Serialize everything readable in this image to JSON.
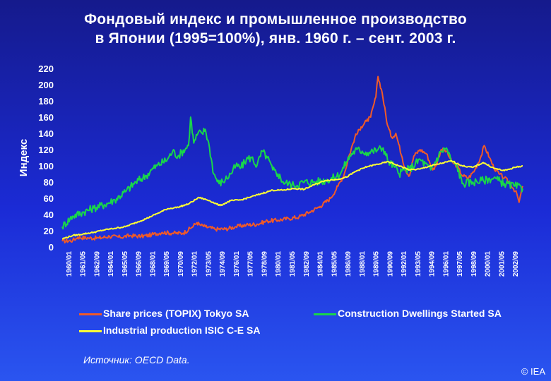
{
  "title_line1": "Фондовый индекс и промышленное производство",
  "title_line2": "в Японии (1995=100%), янв. 1960 г. – сент. 2003 г.",
  "source_text": "Источник: OECD Data.",
  "copyright": "© IEA",
  "colors": {
    "share_prices": "#f05a28",
    "construction": "#19d64a",
    "industrial": "#ffff33",
    "text": "#ffffff"
  },
  "chart_data": {
    "type": "line",
    "ylabel": "Индекс",
    "ylim": [
      0,
      220
    ],
    "yticks": [
      0,
      20,
      40,
      60,
      80,
      100,
      120,
      140,
      160,
      180,
      200,
      220
    ],
    "xlim": [
      1960.0,
      2003.75
    ],
    "xtick_labels": [
      "1960/01",
      "1961/05",
      "1962/09",
      "1964/01",
      "1965/05",
      "1966/09",
      "1968/01",
      "1969/05",
      "1970/09",
      "1972/01",
      "1973/05",
      "1974/09",
      "1976/01",
      "1977/05",
      "1978/09",
      "1980/01",
      "1981/05",
      "1982/09",
      "1984/01",
      "1985/05",
      "1986/09",
      "1988/01",
      "1989/05",
      "1990/09",
      "1992/01",
      "1993/05",
      "1994/09",
      "1996/01",
      "1997/05",
      "1998/09",
      "2000/01",
      "2001/05",
      "2002/09"
    ],
    "grid": false,
    "legend_position": "bottom",
    "series": [
      {
        "name": "Share prices (TOPIX) Tokyo SA",
        "x": [
          1960.0,
          1961.0,
          1961.5,
          1962.5,
          1963.5,
          1964.5,
          1965.5,
          1966.5,
          1967.5,
          1968.5,
          1969.5,
          1970.5,
          1971.5,
          1972.3,
          1972.8,
          1973.1,
          1973.6,
          1974.5,
          1975.5,
          1976.5,
          1977.5,
          1978.5,
          1979.5,
          1980.5,
          1981.5,
          1982.5,
          1983.5,
          1984.5,
          1985.5,
          1986.2,
          1986.8,
          1987.2,
          1987.8,
          1988.4,
          1988.9,
          1989.3,
          1989.8,
          1990.0,
          1990.4,
          1990.9,
          1991.3,
          1991.7,
          1992.3,
          1992.6,
          1993.0,
          1993.4,
          1994.0,
          1994.6,
          1995.2,
          1995.5,
          1996.0,
          1996.5,
          1997.0,
          1997.5,
          1998.0,
          1998.6,
          1999.2,
          1999.8,
          2000.1,
          2000.6,
          2001.0,
          2001.5,
          2002.0,
          2002.6,
          2003.2,
          2003.4,
          2003.75
        ],
        "values": [
          7,
          8,
          12,
          11,
          11,
          13,
          12,
          14,
          13,
          15,
          18,
          17,
          17,
          24,
          30,
          27,
          25,
          22,
          22,
          25,
          27,
          28,
          32,
          33,
          35,
          37,
          43,
          50,
          60,
          75,
          90,
          110,
          135,
          148,
          155,
          160,
          185,
          210,
          190,
          150,
          135,
          140,
          110,
          95,
          88,
          112,
          120,
          115,
          95,
          100,
          120,
          118,
          105,
          100,
          88,
          85,
          95,
          112,
          125,
          110,
          98,
          90,
          85,
          78,
          65,
          55,
          75
        ]
      },
      {
        "name": "Construction Dwellings Started SA",
        "x": [
          1960.0,
          1961.0,
          1962.0,
          1963.0,
          1964.0,
          1965.0,
          1966.0,
          1967.0,
          1968.0,
          1968.5,
          1969.0,
          1970.0,
          1970.5,
          1971.0,
          1972.0,
          1972.2,
          1972.5,
          1972.9,
          1973.3,
          1973.6,
          1974.0,
          1974.4,
          1974.9,
          1975.5,
          1976.0,
          1976.5,
          1977.0,
          1977.5,
          1978.0,
          1978.5,
          1979.0,
          1979.5,
          1980.0,
          1980.5,
          1981.0,
          1981.5,
          1982.0,
          1983.0,
          1984.0,
          1985.0,
          1986.0,
          1986.5,
          1987.0,
          1987.5,
          1988.0,
          1988.5,
          1989.0,
          1989.5,
          1990.0,
          1990.5,
          1991.0,
          1991.5,
          1992.0,
          1992.5,
          1993.0,
          1994.0,
          1995.0,
          1996.0,
          1996.5,
          1997.0,
          1997.5,
          1998.0,
          1999.0,
          2000.0,
          2001.0,
          2002.0,
          2003.0,
          2003.75
        ],
        "values": [
          25,
          38,
          43,
          48,
          52,
          58,
          68,
          80,
          88,
          95,
          100,
          108,
          118,
          112,
          125,
          160,
          128,
          140,
          140,
          145,
          122,
          90,
          78,
          83,
          90,
          100,
          98,
          108,
          110,
          100,
          118,
          110,
          95,
          90,
          80,
          78,
          76,
          80,
          80,
          82,
          86,
          92,
          105,
          115,
          120,
          118,
          116,
          118,
          120,
          122,
          105,
          100,
          90,
          95,
          96,
          108,
          95,
          118,
          122,
          105,
          100,
          78,
          80,
          82,
          85,
          78,
          75,
          72
        ]
      },
      {
        "name": "Industrial production ISIC C-E SA",
        "x": [
          1960.0,
          1961.0,
          1962.0,
          1963.0,
          1964.0,
          1965.0,
          1966.0,
          1967.0,
          1968.0,
          1969.0,
          1970.0,
          1971.0,
          1972.0,
          1973.0,
          1974.0,
          1975.0,
          1976.0,
          1977.0,
          1978.0,
          1979.0,
          1980.0,
          1981.0,
          1982.0,
          1983.0,
          1984.0,
          1985.0,
          1986.0,
          1987.0,
          1988.0,
          1989.0,
          1990.0,
          1991.0,
          1992.0,
          1993.0,
          1994.0,
          1995.0,
          1996.0,
          1997.0,
          1998.0,
          1999.0,
          2000.0,
          2001.0,
          2002.0,
          2003.0,
          2003.75
        ],
        "values": [
          10,
          14,
          16,
          18,
          21,
          23,
          25,
          30,
          35,
          41,
          47,
          49,
          53,
          61,
          57,
          51,
          57,
          58,
          62,
          66,
          70,
          70,
          72,
          71,
          77,
          82,
          83,
          86,
          94,
          99,
          102,
          105,
          100,
          95,
          96,
          100,
          103,
          106,
          100,
          98,
          104,
          97,
          94,
          98,
          100
        ]
      }
    ]
  }
}
